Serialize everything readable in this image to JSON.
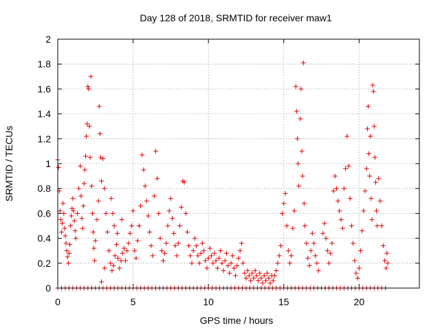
{
  "chart_data": {
    "type": "scatter",
    "title": "Day 128 of 2018, SRMTID for receiver maw1",
    "xlabel": "GPS time / hours",
    "ylabel": "SRMTID / TECUs",
    "xlim": [
      0,
      24
    ],
    "ylim": [
      0,
      2
    ],
    "x_ticks": [
      "0",
      "5",
      "10",
      "15",
      "20"
    ],
    "x_tick_values": [
      0,
      5,
      10,
      15,
      20
    ],
    "y_ticks": [
      "0",
      "0.2",
      "0.4",
      "0.6",
      "0.8",
      "1",
      "1.2",
      "1.4",
      "1.6",
      "1.8",
      "2"
    ],
    "y_tick_values": [
      0,
      0.2,
      0.4,
      0.6,
      0.8,
      1.0,
      1.2,
      1.4,
      1.6,
      1.8,
      2.0
    ],
    "grid": true,
    "marker": "+",
    "series": [
      {
        "name": "SRMTID",
        "color": "#e00000",
        "points": [
          [
            0.0,
            1.03
          ],
          [
            0.05,
            0.97
          ],
          [
            0.1,
            0.78
          ],
          [
            0.15,
            0.62
          ],
          [
            0.2,
            0.55
          ],
          [
            0.25,
            0.45
          ],
          [
            0.3,
            0.52
          ],
          [
            0.35,
            0.68
          ],
          [
            0.4,
            0.6
          ],
          [
            0.45,
            0.48
          ],
          [
            0.5,
            0.42
          ],
          [
            0.55,
            0.36
          ],
          [
            0.6,
            0.3
          ],
          [
            0.65,
            0.25
          ],
          [
            0.7,
            0.2
          ],
          [
            0.75,
            0.28
          ],
          [
            0.8,
            0.35
          ],
          [
            0.85,
            0.5
          ],
          [
            0.9,
            0.58
          ],
          [
            0.95,
            0.64
          ],
          [
            1.0,
            0.72
          ],
          [
            1.05,
            0.62
          ],
          [
            1.1,
            0.54
          ],
          [
            1.15,
            0.46
          ],
          [
            1.2,
            0.4
          ],
          [
            1.3,
            0.6
          ],
          [
            1.4,
            0.8
          ],
          [
            1.5,
            0.98
          ],
          [
            1.55,
            0.74
          ],
          [
            1.6,
            0.56
          ],
          [
            1.65,
            0.48
          ],
          [
            1.7,
            0.66
          ],
          [
            1.75,
            0.84
          ],
          [
            1.8,
            0.95
          ],
          [
            1.85,
            1.06
          ],
          [
            1.9,
            1.22
          ],
          [
            1.95,
            1.32
          ],
          [
            2.0,
            1.62
          ],
          [
            2.05,
            1.6
          ],
          [
            2.1,
            1.3
          ],
          [
            2.15,
            1.05
          ],
          [
            2.2,
            1.7
          ],
          [
            2.25,
            0.82
          ],
          [
            2.3,
            0.6
          ],
          [
            2.35,
            0.45
          ],
          [
            2.4,
            0.32
          ],
          [
            2.45,
            0.22
          ],
          [
            2.5,
            0.38
          ],
          [
            2.6,
            0.55
          ],
          [
            2.7,
            0.7
          ],
          [
            2.75,
            1.46
          ],
          [
            2.8,
            1.24
          ],
          [
            2.85,
            1.05
          ],
          [
            2.9,
            0.86
          ],
          [
            3.0,
            1.04
          ],
          [
            3.1,
            0.8
          ],
          [
            3.2,
            0.6
          ],
          [
            3.3,
            0.45
          ],
          [
            3.4,
            0.3
          ],
          [
            3.5,
            0.2
          ],
          [
            3.6,
            0.14
          ],
          [
            3.7,
            0.18
          ],
          [
            3.8,
            0.26
          ],
          [
            3.9,
            0.35
          ],
          [
            4.0,
            0.24
          ],
          [
            4.1,
            0.16
          ],
          [
            4.2,
            0.22
          ],
          [
            4.3,
            0.28
          ],
          [
            4.4,
            0.32
          ],
          [
            4.5,
            0.22
          ],
          [
            2.9,
            0.05
          ],
          [
            3.1,
            0.16
          ],
          [
            3.55,
            0.72
          ],
          [
            3.65,
            0.6
          ],
          [
            3.75,
            0.5
          ],
          [
            3.95,
            0.44
          ],
          [
            4.25,
            0.55
          ],
          [
            4.6,
            0.3
          ],
          [
            4.7,
            0.36
          ],
          [
            4.8,
            0.44
          ],
          [
            4.9,
            0.5
          ],
          [
            5.0,
            0.62
          ],
          [
            5.1,
            0.3
          ],
          [
            5.2,
            0.24
          ],
          [
            5.3,
            0.38
          ],
          [
            5.4,
            0.5
          ],
          [
            5.5,
            0.66
          ],
          [
            5.6,
            1.07
          ],
          [
            5.7,
            0.95
          ],
          [
            5.8,
            0.82
          ],
          [
            5.9,
            0.7
          ],
          [
            6.0,
            0.58
          ],
          [
            6.1,
            0.45
          ],
          [
            6.2,
            0.34
          ],
          [
            6.3,
            0.26
          ],
          [
            6.4,
            0.74
          ],
          [
            6.5,
            1.1
          ],
          [
            6.6,
            0.88
          ],
          [
            6.7,
            0.6
          ],
          [
            6.8,
            0.4
          ],
          [
            6.9,
            0.3
          ],
          [
            7.0,
            0.22
          ],
          [
            7.1,
            0.28
          ],
          [
            7.2,
            0.36
          ],
          [
            7.3,
            0.5
          ],
          [
            7.4,
            0.62
          ],
          [
            7.5,
            0.72
          ],
          [
            7.6,
            0.56
          ],
          [
            7.7,
            0.44
          ],
          [
            7.8,
            0.34
          ],
          [
            7.9,
            0.26
          ],
          [
            8.0,
            0.36
          ],
          [
            8.1,
            0.5
          ],
          [
            8.2,
            0.65
          ],
          [
            8.3,
            0.86
          ],
          [
            8.4,
            0.85
          ],
          [
            8.5,
            0.6
          ],
          [
            8.6,
            0.45
          ],
          [
            8.7,
            0.34
          ],
          [
            8.8,
            0.26
          ],
          [
            8.9,
            0.2
          ],
          [
            9.0,
            0.3
          ],
          [
            9.1,
            0.4
          ],
          [
            9.2,
            0.34
          ],
          [
            9.3,
            0.26
          ],
          [
            9.4,
            0.2
          ],
          [
            9.5,
            0.28
          ],
          [
            9.6,
            0.36
          ],
          [
            9.7,
            0.3
          ],
          [
            9.8,
            0.22
          ],
          [
            9.9,
            0.16
          ],
          [
            10.0,
            0.24
          ],
          [
            10.1,
            0.32
          ],
          [
            10.2,
            0.26
          ],
          [
            10.3,
            0.2
          ],
          [
            10.4,
            0.28
          ],
          [
            10.5,
            0.22
          ],
          [
            10.6,
            0.16
          ],
          [
            10.7,
            0.24
          ],
          [
            10.8,
            0.3
          ],
          [
            10.9,
            0.2
          ],
          [
            11.0,
            0.14
          ],
          [
            11.1,
            0.22
          ],
          [
            11.2,
            0.28
          ],
          [
            11.3,
            0.18
          ],
          [
            11.4,
            0.12
          ],
          [
            11.5,
            0.2
          ],
          [
            11.6,
            0.26
          ],
          [
            11.7,
            0.16
          ],
          [
            11.8,
            0.1
          ],
          [
            11.9,
            0.18
          ],
          [
            12.0,
            0.24
          ],
          [
            12.1,
            0.3
          ],
          [
            12.2,
            0.36
          ],
          [
            12.3,
            0.2
          ],
          [
            12.4,
            0.12
          ],
          [
            12.5,
            0.08
          ],
          [
            12.6,
            0.14
          ],
          [
            12.7,
            0.1
          ],
          [
            12.8,
            0.06
          ],
          [
            12.9,
            0.12
          ],
          [
            13.0,
            0.08
          ],
          [
            13.1,
            0.14
          ],
          [
            13.2,
            0.1
          ],
          [
            13.3,
            0.06
          ],
          [
            13.4,
            0.12
          ],
          [
            13.5,
            0.08
          ],
          [
            13.6,
            0.04
          ],
          [
            13.7,
            0.1
          ],
          [
            13.8,
            0.06
          ],
          [
            13.9,
            0.12
          ],
          [
            14.0,
            0.08
          ],
          [
            14.1,
            0.04
          ],
          [
            14.2,
            0.1
          ],
          [
            14.3,
            0.06
          ],
          [
            14.4,
            0.1
          ],
          [
            14.5,
            0.14
          ],
          [
            14.6,
            0.2
          ],
          [
            14.7,
            0.26
          ],
          [
            14.8,
            0.34
          ],
          [
            14.9,
            0.6
          ],
          [
            15.0,
            0.68
          ],
          [
            15.1,
            0.76
          ],
          [
            15.2,
            0.5
          ],
          [
            15.3,
            0.3
          ],
          [
            15.4,
            0.2
          ],
          [
            15.5,
            0.26
          ],
          [
            15.6,
            0.48
          ],
          [
            15.7,
            0.62
          ],
          [
            15.8,
            1.62
          ],
          [
            15.85,
            1.42
          ],
          [
            15.9,
            1.2
          ],
          [
            15.95,
            1.0
          ],
          [
            16.0,
            0.82
          ],
          [
            16.1,
            1.36
          ],
          [
            16.15,
            1.6
          ],
          [
            16.2,
            1.1
          ],
          [
            16.25,
            0.9
          ],
          [
            16.3,
            1.81
          ],
          [
            16.35,
            0.68
          ],
          [
            16.4,
            0.5
          ],
          [
            16.5,
            0.36
          ],
          [
            16.6,
            0.24
          ],
          [
            16.7,
            0.18
          ],
          [
            16.8,
            0.3
          ],
          [
            16.9,
            0.44
          ],
          [
            17.0,
            0.36
          ],
          [
            17.1,
            0.26
          ],
          [
            17.2,
            0.2
          ],
          [
            17.3,
            0.14
          ],
          [
            17.6,
            0.44
          ],
          [
            17.7,
            0.52
          ],
          [
            17.8,
            0.4
          ],
          [
            17.9,
            0.3
          ],
          [
            18.0,
            0.2
          ],
          [
            18.1,
            0.28
          ],
          [
            18.2,
            0.36
          ],
          [
            18.3,
            0.78
          ],
          [
            18.4,
            0.9
          ],
          [
            18.5,
            0.8
          ],
          [
            18.6,
            0.7
          ],
          [
            18.7,
            0.62
          ],
          [
            18.8,
            0.55
          ],
          [
            18.9,
            0.48
          ],
          [
            19.0,
            0.8
          ],
          [
            19.1,
            0.96
          ],
          [
            19.2,
            1.22
          ],
          [
            19.3,
            0.98
          ],
          [
            19.4,
            0.72
          ],
          [
            19.5,
            0.5
          ],
          [
            19.6,
            0.36
          ],
          [
            19.7,
            0.22
          ],
          [
            19.8,
            0.12
          ],
          [
            19.9,
            0.08
          ],
          [
            20.0,
            0.16
          ],
          [
            20.1,
            0.3
          ],
          [
            20.2,
            0.46
          ],
          [
            20.3,
            0.62
          ],
          [
            20.4,
            0.78
          ],
          [
            20.5,
            0.96
          ],
          [
            20.55,
            1.28
          ],
          [
            20.6,
            1.46
          ],
          [
            20.65,
            1.08
          ],
          [
            20.7,
            0.9
          ],
          [
            20.75,
            1.22
          ],
          [
            20.8,
            0.72
          ],
          [
            20.85,
            0.55
          ],
          [
            20.9,
            1.63
          ],
          [
            20.95,
            1.58
          ],
          [
            21.0,
            1.3
          ],
          [
            21.05,
            1.05
          ],
          [
            21.1,
            0.85
          ],
          [
            21.15,
            0.62
          ],
          [
            21.2,
            0.5
          ],
          [
            21.3,
            0.88
          ],
          [
            21.4,
            0.7
          ],
          [
            21.5,
            0.5
          ],
          [
            21.6,
            0.34
          ],
          [
            21.7,
            0.22
          ],
          [
            21.8,
            0.16
          ],
          [
            21.85,
            0.28
          ],
          [
            21.9,
            0.2
          ]
        ],
        "zero_x": [
          0.0,
          0.25,
          0.5,
          0.75,
          1.0,
          1.25,
          1.5,
          1.75,
          2.0,
          2.25,
          2.5,
          2.75,
          3.0,
          3.25,
          3.5,
          3.75,
          4.0,
          4.25,
          4.5,
          4.75,
          5.0,
          5.25,
          5.5,
          5.75,
          6.0,
          6.25,
          6.5,
          6.75,
          7.0,
          7.25,
          7.5,
          7.75,
          8.0,
          8.25,
          8.5,
          8.75,
          9.0,
          9.25,
          9.5,
          9.75,
          10.0,
          10.25,
          10.5,
          10.75,
          11.0,
          11.25,
          11.5,
          11.75,
          12.0,
          12.25,
          12.5,
          12.75,
          13.0,
          13.25,
          13.5,
          13.75,
          14.0,
          14.25,
          14.5,
          14.75,
          15.0,
          15.25,
          15.5,
          15.75,
          16.0,
          16.25,
          16.5,
          16.75,
          17.0,
          17.25,
          17.5,
          17.75,
          18.0,
          18.25,
          18.5,
          18.75,
          19.0,
          19.25,
          19.5,
          19.75,
          20.0,
          20.25,
          20.5,
          20.75,
          21.0,
          21.25,
          21.5,
          21.75
        ]
      }
    ]
  }
}
